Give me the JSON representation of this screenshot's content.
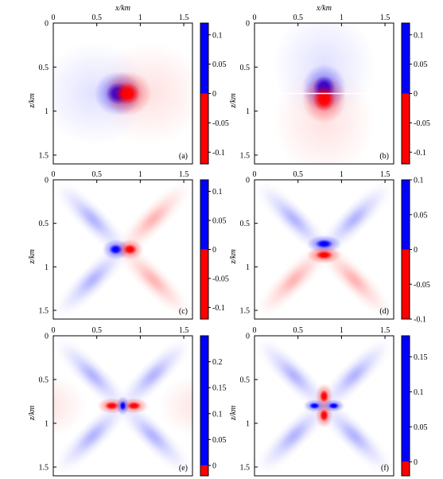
{
  "chart_data": [
    {
      "type": "heatmap",
      "panel_label": "(a)",
      "xlabel": "x/km",
      "ylabel": "z/km",
      "xlim": [
        0,
        1.6
      ],
      "ylim": [
        0,
        1.6
      ],
      "y_inverted": true,
      "x_ticks": [
        "0",
        "0.5",
        "1",
        "1.5"
      ],
      "y_ticks": [
        "0",
        "0.5",
        "1",
        "1.5"
      ],
      "center": [
        0.8,
        0.8
      ],
      "pattern": "horizontal-dipole",
      "negative_side": "left",
      "color_negative": "#0000ff",
      "color_positive": "#ff0000",
      "colorbar": {
        "ticks": [
          "0.1",
          "0.05",
          "0",
          "-0.05",
          "-0.1"
        ],
        "vmin": -0.12,
        "vmax": 0.12
      }
    },
    {
      "type": "heatmap",
      "panel_label": "(b)",
      "xlabel": "x/km",
      "ylabel": "z/km",
      "xlim": [
        0,
        1.6
      ],
      "ylim": [
        0,
        1.6
      ],
      "y_inverted": true,
      "x_ticks": [
        "0",
        "0.5",
        "1",
        "1.5"
      ],
      "y_ticks": [
        "0",
        "0.5",
        "1",
        "1.5"
      ],
      "center": [
        0.8,
        0.8
      ],
      "pattern": "vertical-dipole",
      "negative_side": "top",
      "color_negative": "#0000ff",
      "color_positive": "#ff0000",
      "colorbar": {
        "ticks": [
          "0.1",
          "0.05",
          "0",
          "-0.05",
          "-0.1"
        ],
        "vmin": -0.12,
        "vmax": 0.12
      }
    },
    {
      "type": "heatmap",
      "panel_label": "(c)",
      "xlabel": "",
      "ylabel": "z/km",
      "xlim": [
        0,
        1.6
      ],
      "ylim": [
        0,
        1.6
      ],
      "y_inverted": true,
      "x_ticks": [
        "0",
        "0.5",
        "1",
        "1.5"
      ],
      "y_ticks": [
        "0",
        "0.5",
        "1",
        "1.5"
      ],
      "center": [
        0.8,
        0.8
      ],
      "pattern": "horizontal-dipole-x",
      "negative_side": "left",
      "color_negative": "#0000ff",
      "color_positive": "#ff0000",
      "colorbar": {
        "ticks": [
          "0.1",
          "0.05",
          "0",
          "-0.05",
          "-0.1"
        ],
        "vmin": -0.12,
        "vmax": 0.12
      }
    },
    {
      "type": "heatmap",
      "panel_label": "(d)",
      "xlabel": "",
      "ylabel": "z/km",
      "xlim": [
        0,
        1.6
      ],
      "ylim": [
        0,
        1.6
      ],
      "y_inverted": true,
      "x_ticks": [
        "0",
        "0.5",
        "1",
        "1.5"
      ],
      "y_ticks": [
        "0",
        "0.5",
        "1",
        "1.5"
      ],
      "center": [
        0.8,
        0.8
      ],
      "pattern": "vertical-dipole-x",
      "negative_side": "top",
      "color_negative": "#0000ff",
      "color_positive": "#ff0000",
      "colorbar": {
        "ticks": [
          "0.1",
          "0.05",
          "0",
          "-0.05",
          "-0.1"
        ],
        "vmin": -0.1,
        "vmax": 0.1
      }
    },
    {
      "type": "heatmap",
      "panel_label": "(e)",
      "xlabel": "",
      "ylabel": "z/km",
      "xlim": [
        0,
        1.6
      ],
      "ylim": [
        0,
        1.6
      ],
      "y_inverted": true,
      "x_ticks": [
        "0",
        "0.5",
        "1",
        "1.5"
      ],
      "y_ticks": [
        "0",
        "0.5",
        "1",
        "1.5"
      ],
      "center": [
        0.8,
        0.8
      ],
      "pattern": "quadrupole-x",
      "negative_side": "diagonals",
      "color_negative": "#0000ff",
      "color_positive": "#ff0000",
      "colorbar": {
        "ticks": [
          "0.2",
          "0.15",
          "0.1",
          "0.05",
          "0"
        ],
        "vmin": -0.02,
        "vmax": 0.25
      }
    },
    {
      "type": "heatmap",
      "panel_label": "(f)",
      "xlabel": "",
      "ylabel": "z/km",
      "xlim": [
        0,
        1.6
      ],
      "ylim": [
        0,
        1.6
      ],
      "y_inverted": true,
      "x_ticks": [
        "0",
        "0.5",
        "1",
        "1.5"
      ],
      "y_ticks": [
        "0",
        "0.5",
        "1",
        "1.5"
      ],
      "center": [
        0.8,
        0.8
      ],
      "pattern": "quadrupole-x-vertical",
      "negative_side": "sides",
      "color_negative": "#0000ff",
      "color_positive": "#ff0000",
      "colorbar": {
        "ticks": [
          "0.15",
          "0.1",
          "0.05",
          "0"
        ],
        "vmin": -0.02,
        "vmax": 0.18
      }
    }
  ]
}
